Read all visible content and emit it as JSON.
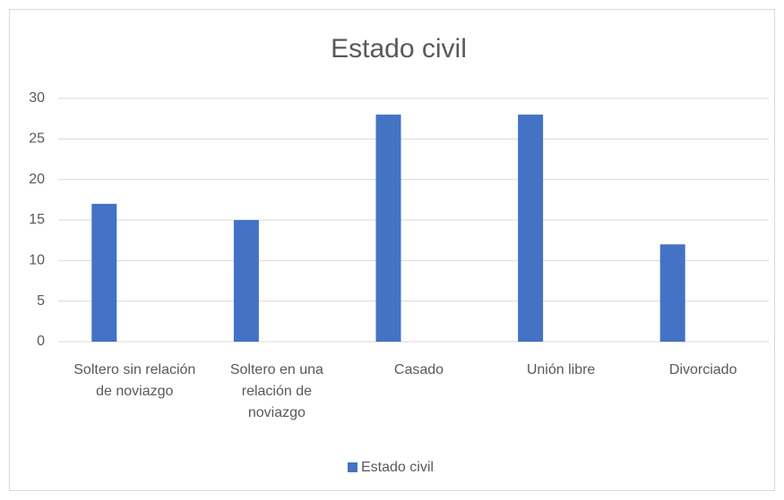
{
  "chart_data": {
    "type": "bar",
    "title": "Estado civil",
    "categories": [
      "Soltero sin relación de noviazgo",
      "Soltero en una relación de noviazgo",
      "Casado",
      "Unión libre",
      "Divorciado"
    ],
    "series": [
      {
        "name": "Estado civil",
        "color": "#4472c4",
        "values": [
          17,
          15,
          28,
          28,
          12
        ]
      }
    ],
    "ylim": [
      0,
      30
    ],
    "yticks": [
      0,
      5,
      10,
      15,
      20,
      25,
      30
    ],
    "grid": true,
    "legend": "bottom"
  }
}
